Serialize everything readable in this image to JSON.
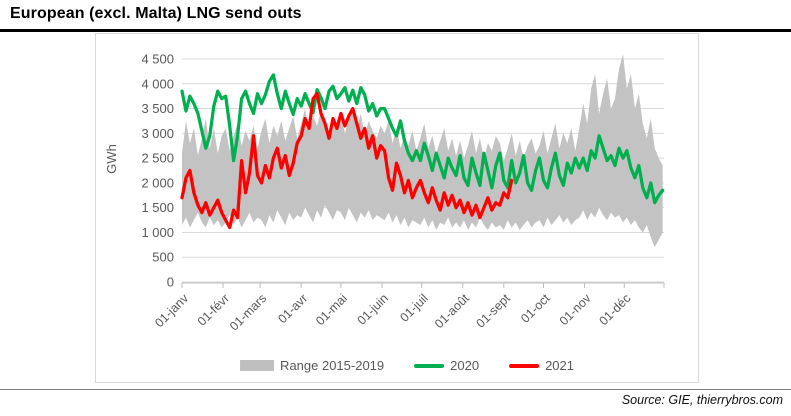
{
  "page": {
    "title": "European (excl. Malta) LNG send outs",
    "source": "Source: GIE, thierrybros.com"
  },
  "chart_data": {
    "type": "line",
    "title": "European (excl. Malta) LNG send outs",
    "xlabel": "",
    "ylabel": "GWh",
    "ylim": [
      0,
      4500
    ],
    "y_tick_step": 500,
    "y_tick_labels": [
      "0",
      "500",
      "1 000",
      "1 500",
      "2 000",
      "2 500",
      "3 000",
      "3 500",
      "4 000",
      "4 500"
    ],
    "x_tick_labels": [
      "01-janv",
      "01-févr",
      "01-mars",
      "01-avr",
      "01-mai",
      "01-juin",
      "01-juil",
      "01-août",
      "01-sept",
      "01-oct",
      "01-nov",
      "01-déc"
    ],
    "x_tick_days": [
      0,
      31,
      59,
      90,
      120,
      151,
      181,
      212,
      243,
      273,
      304,
      334
    ],
    "days_in_year": 364,
    "grid": true,
    "legend_position": "bottom",
    "colors": {
      "band": "#c3c3c3",
      "band_legend": "#bfbfbf",
      "green_2020": "#00b050",
      "red_2021": "#ff0000",
      "grid": "#d9d9d9",
      "axis_line": "#bfbfbf",
      "axis_text": "#595959"
    },
    "x_days": [
      0,
      3,
      6,
      9,
      12,
      15,
      18,
      21,
      24,
      27,
      30,
      33,
      36,
      39,
      42,
      45,
      48,
      51,
      54,
      57,
      60,
      63,
      66,
      69,
      72,
      75,
      78,
      81,
      84,
      87,
      90,
      93,
      96,
      99,
      102,
      105,
      108,
      111,
      114,
      117,
      120,
      123,
      126,
      129,
      132,
      135,
      138,
      141,
      144,
      147,
      150,
      153,
      156,
      159,
      162,
      165,
      168,
      171,
      174,
      177,
      180,
      183,
      186,
      189,
      192,
      195,
      198,
      201,
      204,
      207,
      210,
      213,
      216,
      219,
      222,
      225,
      228,
      231,
      234,
      237,
      240,
      243,
      246,
      249,
      252,
      255,
      258,
      261,
      264,
      267,
      270,
      273,
      276,
      279,
      282,
      285,
      288,
      291,
      294,
      297,
      300,
      303,
      306,
      309,
      312,
      315,
      318,
      321,
      324,
      327,
      330,
      333,
      336,
      339,
      342,
      345,
      348,
      351,
      354,
      357,
      360,
      363
    ],
    "series": [
      {
        "name": "Range 2015-2019",
        "type": "band",
        "color": "#c3c3c3",
        "min": [
          1150,
          1300,
          1100,
          1250,
          1400,
          1200,
          1100,
          1300,
          1150,
          1250,
          1100,
          1200,
          1350,
          1150,
          1300,
          1100,
          1250,
          1400,
          1200,
          1300,
          1250,
          1100,
          1350,
          1200,
          1450,
          1300,
          1150,
          1400,
          1250,
          1350,
          1300,
          1500,
          1350,
          1200,
          1450,
          1300,
          1550,
          1400,
          1250,
          1450,
          1400,
          1250,
          1500,
          1350,
          1200,
          1400,
          1300,
          1450,
          1250,
          1350,
          1300,
          1250,
          1400,
          1200,
          1350,
          1150,
          1300,
          1100,
          1250,
          1200,
          1150,
          1300,
          1100,
          1250,
          1050,
          1200,
          1150,
          1300,
          1100,
          1200,
          1100,
          1250,
          1050,
          1200,
          1100,
          1300,
          1150,
          1050,
          1200,
          1100,
          1150,
          1050,
          1250,
          1100,
          1200,
          1050,
          1150,
          1250,
          1100,
          1200,
          1250,
          1100,
          1300,
          1150,
          1250,
          1350,
          1200,
          1300,
          1150,
          1250,
          1300,
          1450,
          1250,
          1400,
          1300,
          1500,
          1350,
          1250,
          1400,
          1300,
          1350,
          1200,
          1300,
          1150,
          1250,
          1100,
          1000,
          1150,
          900,
          700,
          850,
          1000
        ],
        "max": [
          2600,
          3250,
          2800,
          3100,
          2550,
          2900,
          3300,
          2700,
          3100,
          2600,
          2950,
          3100,
          2650,
          2950,
          3200,
          2750,
          3050,
          2850,
          3150,
          2700,
          3050,
          3300,
          2800,
          3150,
          2950,
          3250,
          2850,
          3100,
          3350,
          2900,
          3200,
          3500,
          3050,
          3350,
          3150,
          3450,
          3250,
          3000,
          3300,
          3100,
          3350,
          3000,
          3300,
          3550,
          3100,
          3400,
          2950,
          3250,
          3050,
          2900,
          3150,
          3000,
          3250,
          2800,
          3100,
          2700,
          2950,
          2750,
          3050,
          2650,
          2900,
          3200,
          2700,
          2950,
          2600,
          2850,
          3100,
          2650,
          2900,
          2550,
          2850,
          2500,
          2750,
          3050,
          2600,
          2900,
          2500,
          2800,
          2650,
          2950,
          2800,
          2450,
          2700,
          3000,
          2550,
          2850,
          2500,
          2750,
          2900,
          2600,
          2750,
          3050,
          2600,
          2900,
          3200,
          2700,
          3000,
          2800,
          3100,
          2650,
          3100,
          3600,
          3200,
          3900,
          4200,
          3400,
          3800,
          4100,
          3500,
          3700,
          4300,
          4600,
          3900,
          4200,
          3500,
          3800,
          3200,
          2900,
          3300,
          2700,
          2500,
          2350
        ]
      },
      {
        "name": "2020",
        "type": "line",
        "color": "#00b050",
        "values": [
          3850,
          3450,
          3750,
          3600,
          3400,
          3050,
          2700,
          2950,
          3550,
          3850,
          3700,
          3750,
          3150,
          2450,
          2950,
          3700,
          3850,
          3600,
          3400,
          3800,
          3600,
          3780,
          4050,
          4180,
          3800,
          3500,
          3850,
          3600,
          3380,
          3700,
          3550,
          3800,
          3600,
          3420,
          3880,
          3720,
          3500,
          3850,
          3950,
          3700,
          3800,
          3920,
          3650,
          3870,
          3600,
          3920,
          3780,
          3450,
          3600,
          3350,
          3500,
          3500,
          3300,
          3100,
          2950,
          3250,
          2850,
          2600,
          2450,
          2650,
          2450,
          2800,
          2550,
          2250,
          2600,
          2350,
          2100,
          2500,
          2300,
          2150,
          2550,
          2100,
          1950,
          2500,
          2200,
          1950,
          2600,
          2250,
          1900,
          2350,
          2600,
          2050,
          1900,
          2450,
          2000,
          2200,
          2550,
          2000,
          1850,
          2250,
          2500,
          2050,
          1900,
          2300,
          2600,
          2150,
          1950,
          2400,
          2200,
          2500,
          2300,
          2500,
          2250,
          2650,
          2500,
          2950,
          2700,
          2450,
          2550,
          2350,
          2700,
          2500,
          2650,
          2300,
          2100,
          2350,
          1900,
          1700,
          2000,
          1600,
          1750,
          1850
        ]
      },
      {
        "name": "2021",
        "type": "line",
        "color": "#ff0000",
        "values": [
          1700,
          2100,
          2250,
          1800,
          1550,
          1400,
          1600,
          1350,
          1500,
          1650,
          1400,
          1250,
          1100,
          1450,
          1300,
          2450,
          1800,
          2200,
          2950,
          2150,
          2000,
          2350,
          2100,
          2500,
          2700,
          2300,
          2550,
          2150,
          2400,
          2800,
          2950,
          3300,
          3100,
          3700,
          3800,
          3400,
          3200,
          2900,
          3300,
          3100,
          3400,
          3150,
          3350,
          3500,
          3200,
          2900,
          3100,
          2700,
          2950,
          2500,
          2750,
          2650,
          2100,
          1850,
          2400,
          2150,
          1800,
          2050,
          1700,
          1900,
          2050,
          1800,
          1600,
          1900,
          1650,
          1450,
          1800,
          1550,
          1750,
          1500,
          1650,
          1400,
          1600,
          1350,
          1550,
          1300,
          1500,
          1700,
          1450,
          1600,
          1550,
          1800,
          1700,
          2050
        ]
      }
    ]
  }
}
